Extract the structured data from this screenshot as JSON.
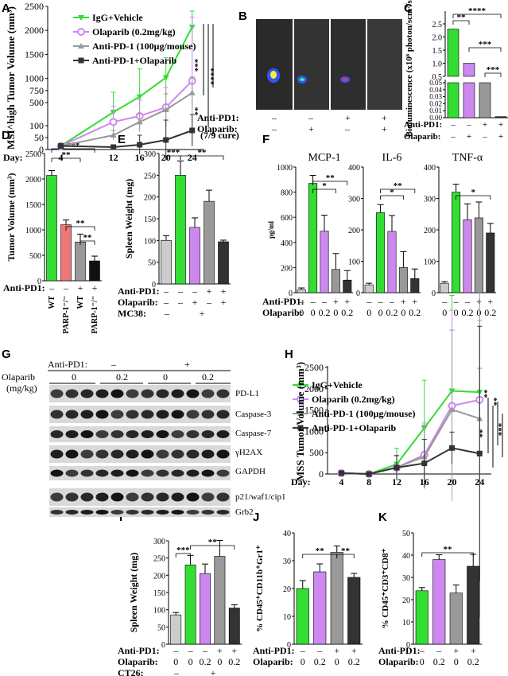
{
  "panels": {
    "A": "A",
    "B": "B",
    "C": "C",
    "D": "D",
    "E": "E",
    "F": "F",
    "G": "G",
    "H": "H",
    "I": "I",
    "J": "J",
    "K": "K"
  },
  "colors": {
    "green": "#33dd33",
    "violet": "#cc88ee",
    "violet_light": "#dd99ee",
    "gray": "#999999",
    "dark": "#333333",
    "salmon": "#ee7777",
    "black": "#111111",
    "lightgray": "#cccccc"
  },
  "common": {
    "anti_pd1": "Anti-PD1:",
    "olaparib": "Olaparib:",
    "minus": "–",
    "plus": "+",
    "day": "Day:"
  },
  "chart_data": [
    {
      "id": "A",
      "type": "line",
      "ylabel": "MSI^high Tumor Volume (mm³)",
      "x": [
        4,
        12,
        16,
        20,
        24
      ],
      "yticks": [
        0,
        50,
        100,
        250,
        500,
        750,
        1000,
        1500,
        2000,
        2500
      ],
      "series": [
        {
          "name": "IgG+Vehicle",
          "values": [
            15,
            300,
            620,
            1020,
            2070
          ]
        },
        {
          "name": "Olaparib (0.2mg/kg)",
          "values": [
            15,
            150,
            230,
            400,
            950
          ]
        },
        {
          "name": "Anti-PD-1 (100μg/mouse)",
          "values": [
            15,
            60,
            150,
            350,
            700
          ]
        },
        {
          "name": "Anti-PD-1+Olaparib",
          "values": [
            15,
            10,
            20,
            40,
            80
          ]
        }
      ],
      "annotation": "(7/9 cure)",
      "significance": [
        "***",
        "****",
        "**"
      ]
    },
    {
      "id": "C",
      "type": "bar",
      "ylabel": "Bioluminescence (x10⁸ photon/scm²/sr)",
      "values": [
        2.3,
        1.0,
        0.05,
        0.001
      ],
      "yticks_top": [
        "0.5",
        "1.0",
        "1.5",
        "2.0",
        "2.5"
      ],
      "yticks_bottom": [
        "0.00",
        "0.01",
        "0.02",
        "0.03",
        "0.04",
        "0.05"
      ],
      "anti_pd1": [
        "–",
        "–",
        "+",
        "+"
      ],
      "olaparib": [
        "–",
        "+",
        "–",
        "+"
      ],
      "significance": [
        "**",
        "****",
        "***",
        "***"
      ]
    },
    {
      "id": "D",
      "type": "bar",
      "ylabel": "Tumor Volume (mm³)",
      "categories": [
        "WT",
        "PARP-1⁻/⁻",
        "WT",
        "PARP-1⁻/⁻"
      ],
      "values": [
        2070,
        1100,
        760,
        390
      ],
      "ylim": [
        0,
        2500
      ],
      "yticks": [
        "0",
        "500",
        "1000",
        "1500",
        "2000",
        "2500"
      ],
      "anti_pd1": [
        "–",
        "–",
        "+",
        "+"
      ],
      "significance": [
        "***",
        "**",
        "**",
        "**"
      ]
    },
    {
      "id": "E",
      "type": "bar",
      "ylabel": "Spleen Weight (mg)",
      "values": [
        100,
        250,
        130,
        190,
        97
      ],
      "ylim": [
        0,
        300
      ],
      "yticks": [
        "0",
        "50",
        "100",
        "150",
        "200",
        "250",
        "300"
      ],
      "anti_pd1": [
        "–",
        "–",
        "–",
        "+",
        "+"
      ],
      "olaparib": [
        "–",
        "–",
        "+",
        "–",
        "+"
      ],
      "mc38": "MC38:",
      "mc38_marks": [
        "–",
        "+"
      ],
      "significance": [
        "***",
        "**"
      ]
    },
    {
      "id": "F",
      "type": "bar",
      "ylabel": "pg/ml",
      "subplots": [
        {
          "title": "MCP-1",
          "values": [
            25,
            870,
            490,
            185,
            100
          ],
          "yticks": [
            "0",
            "200",
            "400",
            "600",
            "800",
            "1000"
          ],
          "significance": [
            "*",
            "**"
          ]
        },
        {
          "title": "IL-6",
          "values": [
            25,
            255,
            195,
            80,
            45
          ],
          "yticks": [
            "0",
            "100",
            "200",
            "300",
            "400"
          ],
          "significance": [
            "*",
            "**"
          ]
        },
        {
          "title": "TNF-α",
          "values": [
            30,
            320,
            232,
            238,
            190
          ],
          "yticks": [
            "0",
            "100",
            "200",
            "300",
            "400"
          ],
          "significance": [
            "*"
          ]
        }
      ],
      "anti_pd1": [
        "–",
        "–",
        "–",
        "+",
        "+"
      ],
      "olaparib": [
        "0",
        "0",
        "0.2",
        "0",
        "0.2"
      ]
    },
    {
      "id": "H",
      "type": "line",
      "ylabel": "MSS Tumor Volume (mm³)",
      "x": [
        4,
        8,
        12,
        16,
        20,
        24
      ],
      "ylim": [
        0,
        2500
      ],
      "yticks": [
        "0",
        "500",
        "1000",
        "1500",
        "2000",
        "2500"
      ],
      "series": [
        {
          "name": "IgG+Vehicle",
          "values": [
            20,
            0,
            230,
            1080,
            1950,
            1920
          ]
        },
        {
          "name": "Olaparib (0.2mg/kg)",
          "values": [
            20,
            0,
            150,
            450,
            1600,
            1740
          ]
        },
        {
          "name": "Anti-PD-1 (100μg/mouse)",
          "values": [
            20,
            0,
            160,
            400,
            1510,
            1300
          ]
        },
        {
          "name": "Anti-PD-1+Olaparib",
          "values": [
            20,
            0,
            150,
            250,
            610,
            480
          ]
        }
      ],
      "significance": [
        "**",
        "**",
        "**",
        "***"
      ]
    },
    {
      "id": "I",
      "type": "bar",
      "ylabel": "Spleen Weight (mg)",
      "values": [
        85,
        230,
        205,
        255,
        105
      ],
      "ylim": [
        0,
        300
      ],
      "yticks": [
        "0",
        "50",
        "100",
        "150",
        "200",
        "250",
        "300"
      ],
      "anti_pd1": [
        "–",
        "–",
        "–",
        "+",
        "+"
      ],
      "olaparib": [
        "0",
        "0",
        "0.2",
        "0",
        "0.2"
      ],
      "ct26": "CT26:",
      "ct26_marks": [
        "–",
        "+"
      ],
      "significance": [
        "***",
        "**"
      ]
    },
    {
      "id": "J",
      "type": "bar",
      "ylabel": "% CD45⁺CD11b⁺Gr1⁺",
      "values": [
        20,
        26,
        33,
        24
      ],
      "ylim": [
        0,
        40
      ],
      "yticks": [
        "0",
        "10",
        "20",
        "30",
        "40"
      ],
      "anti_pd1": [
        "–",
        "–",
        "+",
        "+"
      ],
      "olaparib": [
        "0",
        "0.2",
        "0",
        "0.2"
      ],
      "significance": [
        "**",
        "**"
      ]
    },
    {
      "id": "K",
      "type": "bar",
      "ylabel": "% CD45⁺CD3⁺CD8⁺",
      "values": [
        24,
        38,
        23,
        35
      ],
      "ylim": [
        0,
        50
      ],
      "yticks": [
        "0",
        "10",
        "20",
        "30",
        "40",
        "50"
      ],
      "anti_pd1": [
        "–",
        "–",
        "+",
        "+"
      ],
      "olaparib": [
        "0",
        "0.2",
        "0",
        "0.2"
      ],
      "significance": [
        "**"
      ]
    }
  ],
  "blot": {
    "anti_pd1": "Anti-PD1:",
    "anti_pd1_marks": [
      "–",
      "+"
    ],
    "olaparib": "Olaparib",
    "unit": "(mg/kg)",
    "doses": [
      "0",
      "0.2",
      "0",
      "0.2"
    ],
    "proteins": [
      "PD-L1",
      "Caspase-3",
      "Caspase-7",
      "γH2AX",
      "GAPDH",
      "p21/waf1/cip1",
      "Grb2"
    ]
  },
  "imaging": {
    "anti_pd1_marks": [
      "–",
      "–",
      "+",
      "+"
    ],
    "olaparib_marks": [
      "–",
      "+",
      "–",
      "+"
    ]
  }
}
